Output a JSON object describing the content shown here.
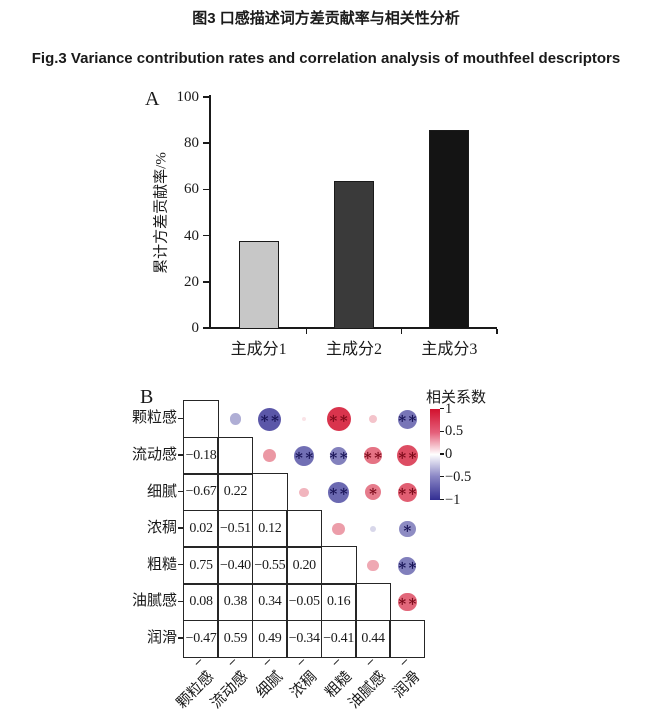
{
  "figure": {
    "title_zh": "图3 口感描述词方差贡献率与相关性分析",
    "title_en": "Fig.3 Variance contribution rates and correlation analysis of mouthfeel descriptors"
  },
  "chart_data": [
    {
      "type": "bar",
      "panel_label": "A",
      "categories": [
        "主成分1",
        "主成分2",
        "主成分3"
      ],
      "values": [
        37.5,
        63.5,
        85.5
      ],
      "xlabel": "",
      "ylabel": "累计方差贡献率/%",
      "ylim": [
        0,
        100
      ],
      "yticks": [
        0,
        20,
        40,
        60,
        80,
        100
      ],
      "grid": false,
      "bar_colors": [
        "#c7c7c7",
        "#3a3a3a",
        "#141414"
      ],
      "bar_border_color": "#1a1a1a"
    },
    {
      "type": "heatmap",
      "subtype": "correlation-circle-matrix",
      "panel_label": "B",
      "labels": [
        "颗粒感",
        "流动感",
        "细腻",
        "浓稠",
        "粗糙",
        "油腻感",
        "润滑"
      ],
      "values": [
        [
          null,
          -0.18,
          -0.67,
          0.02,
          0.75,
          0.08,
          -0.47
        ],
        [
          -0.18,
          null,
          0.22,
          -0.51,
          -0.4,
          0.38,
          0.59
        ],
        [
          -0.67,
          0.22,
          null,
          0.12,
          -0.55,
          0.34,
          0.49
        ],
        [
          0.02,
          -0.51,
          0.12,
          null,
          0.2,
          -0.05,
          -0.34
        ],
        [
          0.75,
          -0.4,
          -0.55,
          0.2,
          null,
          0.16,
          -0.41
        ],
        [
          0.08,
          0.38,
          0.34,
          -0.05,
          0.16,
          null,
          0.44
        ],
        [
          -0.47,
          0.59,
          0.49,
          -0.34,
          -0.41,
          0.44,
          null
        ]
      ],
      "significance": [
        {
          "row": 0,
          "col": 2,
          "stars": "**"
        },
        {
          "row": 0,
          "col": 4,
          "stars": "**"
        },
        {
          "row": 0,
          "col": 6,
          "stars": "**"
        },
        {
          "row": 1,
          "col": 3,
          "stars": "**"
        },
        {
          "row": 1,
          "col": 4,
          "stars": "**"
        },
        {
          "row": 1,
          "col": 5,
          "stars": "**"
        },
        {
          "row": 1,
          "col": 6,
          "stars": "**"
        },
        {
          "row": 2,
          "col": 4,
          "stars": "**"
        },
        {
          "row": 2,
          "col": 5,
          "stars": "*"
        },
        {
          "row": 2,
          "col": 6,
          "stars": "**"
        },
        {
          "row": 3,
          "col": 6,
          "stars": "*"
        },
        {
          "row": 4,
          "col": 6,
          "stars": "**"
        },
        {
          "row": 5,
          "col": 6,
          "stars": "**"
        }
      ],
      "legend": {
        "title": "相关系数",
        "tick_labels": [
          "1",
          "0.5",
          "0",
          "-0.5",
          "-1"
        ],
        "range": [
          1,
          -1
        ],
        "max_color": "#d2112e",
        "mid_color": "#ffffff",
        "min_color": "#322e92",
        "position": "right"
      }
    }
  ]
}
